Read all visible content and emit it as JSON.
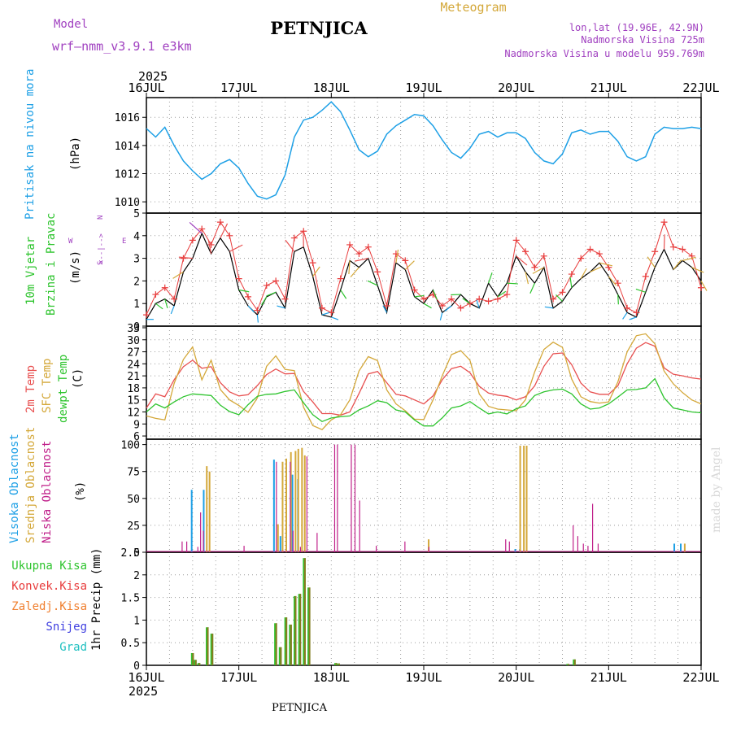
{
  "header": {
    "model_label": "Model",
    "model_name": "wrf—nmm_v3.9.1 e3km",
    "station": "PETNJICA",
    "title": "Meteogram",
    "lonlat": "lon,lat (19.96E, 42.9N)",
    "altitude": "Nadmorska Visina 725m",
    "model_altitude": "Nadmorska Visina u modelu 959.769m",
    "year": "2025",
    "footer_station": "PETNJICA",
    "watermark": "made by Angel"
  },
  "colors": {
    "pressure": "#1ea0e6",
    "wind_speed": "#000000",
    "gust": "#e83c3c",
    "temp2m": "#e85050",
    "sfc": "#d4a83a",
    "dew": "#2ec42e",
    "high_cloud": "#1ea0e6",
    "mid_cloud": "#d4a83a",
    "low_cloud": "#c0208a",
    "precip_total": "#2ec42e",
    "precip_conv": "#e83c3c",
    "precip_frz": "#f08030",
    "snow": "#4040e0",
    "hail": "#20c0c0",
    "model_color": "#a040c0"
  },
  "chart_data": [
    {
      "id": "pressure",
      "type": "line",
      "ylabel": [
        "Pritisak na nivou mora",
        "(hPa)"
      ],
      "yticks": [
        1010,
        1012,
        1014,
        1016
      ],
      "ylim": [
        1009.2,
        1017.4
      ],
      "x": [
        0,
        0.1,
        0.2,
        0.3,
        0.4,
        0.5,
        0.6,
        0.7,
        0.8,
        0.9,
        1.0,
        1.1,
        1.2,
        1.3,
        1.4,
        1.5,
        1.6,
        1.7,
        1.8,
        1.9,
        2.0,
        2.1,
        2.2,
        2.3,
        2.4,
        2.5,
        2.6,
        2.7,
        2.8,
        2.9,
        3.0,
        3.1,
        3.2,
        3.3,
        3.4,
        3.5,
        3.6,
        3.7,
        3.8,
        3.9,
        4.0,
        4.1,
        4.2,
        4.3,
        4.4,
        4.5,
        4.6,
        4.7,
        4.8,
        4.9,
        5.0,
        5.1,
        5.2,
        5.3,
        5.4,
        5.5,
        5.6,
        5.7,
        5.8,
        5.9,
        6.0
      ],
      "values": [
        1015.2,
        1014.6,
        1015.3,
        1014.0,
        1012.9,
        1012.2,
        1011.6,
        1012.0,
        1012.7,
        1013.0,
        1012.4,
        1011.3,
        1010.4,
        1010.2,
        1010.5,
        1011.9,
        1014.6,
        1015.8,
        1016.0,
        1016.5,
        1017.1,
        1016.4,
        1015.1,
        1013.7,
        1013.2,
        1013.6,
        1014.8,
        1015.4,
        1015.8,
        1016.2,
        1016.1,
        1015.4,
        1014.4,
        1013.5,
        1013.1,
        1013.8,
        1014.8,
        1015.0,
        1014.6,
        1014.9,
        1014.9,
        1014.5,
        1013.5,
        1012.9,
        1012.7,
        1013.4,
        1014.9,
        1015.1,
        1014.8,
        1015.0,
        1015.0,
        1014.3,
        1013.2,
        1012.9,
        1013.2,
        1014.8,
        1015.3,
        1015.2,
        1015.2,
        1015.3,
        1015.2
      ]
    },
    {
      "id": "wind",
      "type": "line",
      "ylabel": [
        "10m Vjetar",
        "Brzina i Pravac",
        "(m/s)"
      ],
      "compass": [
        "N",
        "S",
        "W",
        "E",
        "<--|-->"
      ],
      "yticks": [
        0,
        1,
        2,
        3,
        4,
        5
      ],
      "ylim": [
        0,
        5
      ],
      "series": [
        {
          "name": "speed",
          "x": [
            0,
            0.1,
            0.2,
            0.3,
            0.4,
            0.5,
            0.6,
            0.7,
            0.8,
            0.9,
            1.0,
            1.1,
            1.2,
            1.3,
            1.4,
            1.5,
            1.6,
            1.7,
            1.8,
            1.9,
            2.0,
            2.1,
            2.2,
            2.3,
            2.4,
            2.5,
            2.6,
            2.7,
            2.8,
            2.9,
            3.0,
            3.1,
            3.2,
            3.3,
            3.4,
            3.5,
            3.6,
            3.7,
            3.8,
            3.9,
            4.0,
            4.1,
            4.2,
            4.3,
            4.4,
            4.5,
            4.6,
            4.7,
            4.8,
            4.9,
            5.0,
            5.1,
            5.2,
            5.3,
            5.4,
            5.5,
            5.6,
            5.7,
            5.8,
            5.9,
            6.0
          ],
          "values": [
            0.3,
            1.0,
            1.2,
            0.9,
            2.4,
            3.0,
            4.1,
            3.2,
            3.9,
            3.3,
            1.6,
            0.9,
            0.5,
            1.3,
            1.5,
            0.8,
            3.3,
            3.5,
            2.2,
            0.5,
            0.4,
            1.6,
            2.9,
            2.6,
            3.0,
            1.8,
            0.6,
            2.8,
            2.5,
            1.3,
            1.0,
            1.6,
            0.6,
            0.9,
            1.4,
            1.0,
            0.8,
            1.9,
            1.3,
            1.9,
            3.1,
            2.4,
            1.9,
            2.6,
            0.8,
            1.1,
            1.7,
            2.1,
            2.4,
            2.8,
            2.2,
            1.4,
            0.6,
            0.4,
            1.5,
            2.6,
            3.4,
            2.5,
            2.9,
            2.6,
            2.0
          ]
        },
        {
          "name": "gust",
          "x": [
            0,
            0.1,
            0.2,
            0.3,
            0.4,
            0.5,
            0.6,
            0.7,
            0.8,
            0.9,
            1.0,
            1.1,
            1.2,
            1.3,
            1.4,
            1.5,
            1.6,
            1.7,
            1.8,
            1.9,
            2.0,
            2.1,
            2.2,
            2.3,
            2.4,
            2.5,
            2.6,
            2.7,
            2.8,
            2.9,
            3.0,
            3.1,
            3.2,
            3.3,
            3.4,
            3.5,
            3.6,
            3.7,
            3.8,
            3.9,
            4.0,
            4.1,
            4.2,
            4.3,
            4.4,
            4.5,
            4.6,
            4.7,
            4.8,
            4.9,
            5.0,
            5.1,
            5.2,
            5.3,
            5.4,
            5.5,
            5.6,
            5.7,
            5.8,
            5.9,
            6.0
          ],
          "values": [
            0.5,
            1.4,
            1.7,
            1.2,
            3.0,
            3.8,
            4.3,
            3.6,
            4.6,
            4.0,
            2.1,
            1.3,
            0.7,
            1.8,
            2.0,
            1.2,
            3.9,
            4.2,
            2.8,
            0.8,
            0.6,
            2.1,
            3.6,
            3.2,
            3.5,
            2.4,
            0.9,
            3.2,
            2.9,
            1.6,
            1.2,
            1.4,
            0.9,
            1.2,
            0.8,
            1.0,
            1.2,
            1.1,
            1.2,
            1.4,
            3.8,
            3.3,
            2.6,
            3.1,
            1.2,
            1.5,
            2.3,
            3.0,
            3.4,
            3.2,
            2.6,
            1.9,
            0.8,
            0.6,
            2.2,
            3.3,
            4.6,
            3.5,
            3.4,
            3.1,
            1.7
          ]
        }
      ]
    },
    {
      "id": "temperature",
      "type": "line",
      "ylabel": [
        "2m Temp",
        "SFC Temp",
        "dewpt Temp",
        "(C)"
      ],
      "yticks": [
        6,
        9,
        12,
        15,
        18,
        21,
        24,
        27,
        30,
        33
      ],
      "ylim": [
        5.2,
        33.4
      ],
      "series": [
        {
          "name": "2m Temp",
          "x": [
            0,
            0.1,
            0.2,
            0.3,
            0.4,
            0.5,
            0.6,
            0.7,
            0.8,
            0.9,
            1.0,
            1.1,
            1.2,
            1.3,
            1.4,
            1.5,
            1.6,
            1.7,
            1.8,
            1.9,
            2.0,
            2.1,
            2.2,
            2.3,
            2.4,
            2.5,
            2.6,
            2.7,
            2.8,
            2.9,
            3.0,
            3.1,
            3.2,
            3.3,
            3.4,
            3.5,
            3.6,
            3.7,
            3.8,
            3.9,
            4.0,
            4.1,
            4.2,
            4.3,
            4.4,
            4.5,
            4.6,
            4.7,
            4.8,
            4.9,
            5.0,
            5.1,
            5.2,
            5.3,
            5.4,
            5.5,
            5.6,
            5.7,
            5.8,
            5.9,
            6.0
          ],
          "values": [
            13.0,
            16.5,
            15.8,
            20.0,
            23.3,
            24.9,
            22.9,
            23.3,
            19.3,
            17.0,
            16.0,
            16.3,
            18.6,
            21.3,
            22.7,
            21.5,
            21.6,
            17.1,
            14.5,
            11.6,
            11.6,
            11.2,
            12.0,
            16.6,
            21.5,
            22.1,
            19.3,
            16.4,
            16.0,
            15.0,
            14.0,
            16.0,
            20.0,
            22.8,
            23.4,
            21.8,
            18.4,
            16.7,
            16.2,
            15.9,
            15.0,
            15.8,
            18.5,
            23.4,
            26.5,
            26.7,
            23.8,
            19.2,
            17.0,
            16.4,
            16.4,
            18.5,
            24.0,
            27.9,
            29.3,
            28.4,
            23.0,
            21.4,
            21.0,
            20.5,
            20.2
          ]
        },
        {
          "name": "SFC Temp",
          "x": [
            0,
            0.1,
            0.2,
            0.3,
            0.4,
            0.5,
            0.6,
            0.7,
            0.8,
            0.9,
            1.0,
            1.1,
            1.2,
            1.3,
            1.4,
            1.5,
            1.6,
            1.7,
            1.8,
            1.9,
            2.0,
            2.1,
            2.2,
            2.3,
            2.4,
            2.5,
            2.6,
            2.7,
            2.8,
            2.9,
            3.0,
            3.1,
            3.2,
            3.3,
            3.4,
            3.5,
            3.6,
            3.7,
            3.8,
            3.9,
            4.0,
            4.1,
            4.2,
            4.3,
            4.4,
            4.5,
            4.6,
            4.7,
            4.8,
            4.9,
            5.0,
            5.1,
            5.2,
            5.3,
            5.4,
            5.5,
            5.6,
            5.7,
            5.8,
            5.9,
            6.0
          ],
          "values": [
            11.0,
            10.4,
            10.0,
            19.1,
            25.1,
            28.2,
            20.0,
            24.9,
            17.6,
            15.0,
            13.6,
            11.9,
            15.5,
            23.4,
            26.0,
            22.6,
            22.3,
            13.2,
            8.6,
            7.6,
            10.0,
            11.3,
            15.0,
            22.2,
            25.8,
            24.8,
            17.5,
            14.0,
            12.3,
            10.2,
            10.1,
            15.0,
            21.0,
            26.3,
            27.3,
            24.9,
            16.5,
            13.4,
            12.7,
            12.5,
            12.3,
            15.0,
            22.0,
            27.6,
            29.4,
            28.1,
            20.2,
            15.8,
            14.6,
            14.2,
            14.5,
            19.5,
            27.0,
            31.0,
            31.5,
            29.0,
            22.2,
            19.0,
            16.8,
            15.0,
            14.0
          ]
        },
        {
          "name": "dewpt Temp",
          "x": [
            0,
            0.1,
            0.2,
            0.3,
            0.4,
            0.5,
            0.6,
            0.7,
            0.8,
            0.9,
            1.0,
            1.1,
            1.2,
            1.3,
            1.4,
            1.5,
            1.6,
            1.7,
            1.8,
            1.9,
            2.0,
            2.1,
            2.2,
            2.3,
            2.4,
            2.5,
            2.6,
            2.7,
            2.8,
            2.9,
            3.0,
            3.1,
            3.2,
            3.3,
            3.4,
            3.5,
            3.6,
            3.7,
            3.8,
            3.9,
            4.0,
            4.1,
            4.2,
            4.3,
            4.4,
            4.5,
            4.6,
            4.7,
            4.8,
            4.9,
            5.0,
            5.1,
            5.2,
            5.3,
            5.4,
            5.5,
            5.6,
            5.7,
            5.8,
            5.9,
            6.0
          ],
          "values": [
            12.0,
            14.0,
            13.0,
            14.5,
            15.8,
            16.5,
            16.3,
            16.1,
            13.7,
            12.1,
            11.3,
            13.8,
            15.9,
            16.4,
            16.5,
            17.1,
            17.5,
            14.3,
            11.3,
            9.6,
            10.5,
            10.8,
            11.0,
            12.5,
            13.5,
            14.8,
            14.3,
            12.5,
            12.0,
            10.0,
            8.5,
            8.5,
            10.5,
            13.0,
            13.5,
            14.6,
            13.0,
            11.5,
            12.0,
            11.5,
            12.8,
            13.5,
            16.1,
            17.0,
            17.5,
            17.7,
            16.5,
            14.0,
            12.7,
            13.0,
            14.0,
            15.7,
            17.5,
            17.6,
            18.0,
            20.3,
            15.5,
            13.0,
            12.5,
            12.0,
            11.8
          ]
        }
      ]
    },
    {
      "id": "clouds",
      "type": "bar",
      "ylabel": [
        "Visoka Oblacnost",
        "Srednja Oblacnost",
        "Niska Oblacnost",
        "(%)"
      ],
      "yticks": [
        0,
        25,
        50,
        75,
        100
      ],
      "ylim": [
        0,
        105
      ],
      "series": [
        {
          "name": "Visoka Oblacnost",
          "x": [
            0.49,
            0.62,
            1.38,
            1.45,
            1.58,
            1.64,
            3.99,
            4.04,
            5.71,
            5.78
          ],
          "values": [
            58,
            58,
            86,
            15,
            72,
            68,
            3,
            3,
            8,
            8
          ]
        },
        {
          "name": "Srednja Oblacnost",
          "x": [
            0.64,
            0.67,
            1.41,
            1.46,
            1.5,
            1.55,
            1.6,
            1.63,
            1.67,
            1.7,
            3.04,
            4.03,
            4.07,
            4.1,
            5.81
          ],
          "values": [
            80,
            75,
            26,
            84,
            87,
            93,
            94,
            96,
            97,
            90,
            12,
            99,
            99,
            99,
            8
          ]
        },
        {
          "name": "Niska Oblacnost",
          "x": [
            0.36,
            0.41,
            0.53,
            0.56,
            0.59,
            1.03,
            1.38,
            1.53,
            1.56,
            1.64,
            1.71,
            1.82,
            2.01,
            2.04,
            2.19,
            2.23,
            2.28,
            2.46,
            2.77,
            3.03,
            3.86,
            3.9,
            4.59,
            4.64,
            4.7,
            4.75,
            4.8,
            4.86
          ],
          "values": [
            10,
            10,
            5,
            37,
            20,
            6,
            84,
            84,
            20,
            5,
            89,
            18,
            100,
            100,
            100,
            100,
            48,
            6,
            10,
            5,
            12,
            10,
            25,
            15,
            8,
            6,
            45,
            8
          ]
        }
      ]
    },
    {
      "id": "precip",
      "type": "bar",
      "ylabel": [
        "1hr Precip (mm)"
      ],
      "legend": [
        "Ukupna Kisa",
        "Konvek.Kisa",
        "Zaledj.Kisa",
        "Snijeg",
        "Grad"
      ],
      "yticks": [
        0,
        0.5,
        1,
        1.5,
        2,
        2.5
      ],
      "ylim": [
        0,
        2.5
      ],
      "x": [
        0.5,
        0.53,
        0.57,
        0.66,
        0.71,
        1.4,
        1.45,
        1.51,
        1.56,
        1.61,
        1.66,
        1.71,
        1.76,
        2.05,
        2.08,
        4.56,
        4.63
      ],
      "values": [
        0.27,
        0.12,
        0.05,
        0.84,
        0.7,
        0.93,
        0.4,
        1.06,
        0.9,
        1.53,
        1.58,
        2.37,
        1.72,
        0.05,
        0.04,
        0.03,
        0.13
      ]
    }
  ],
  "xaxis": {
    "ticks": [
      "16JUL",
      "17JUL",
      "18JUL",
      "19JUL",
      "20JUL",
      "21JUL",
      "22JUL"
    ],
    "year": "2025"
  }
}
